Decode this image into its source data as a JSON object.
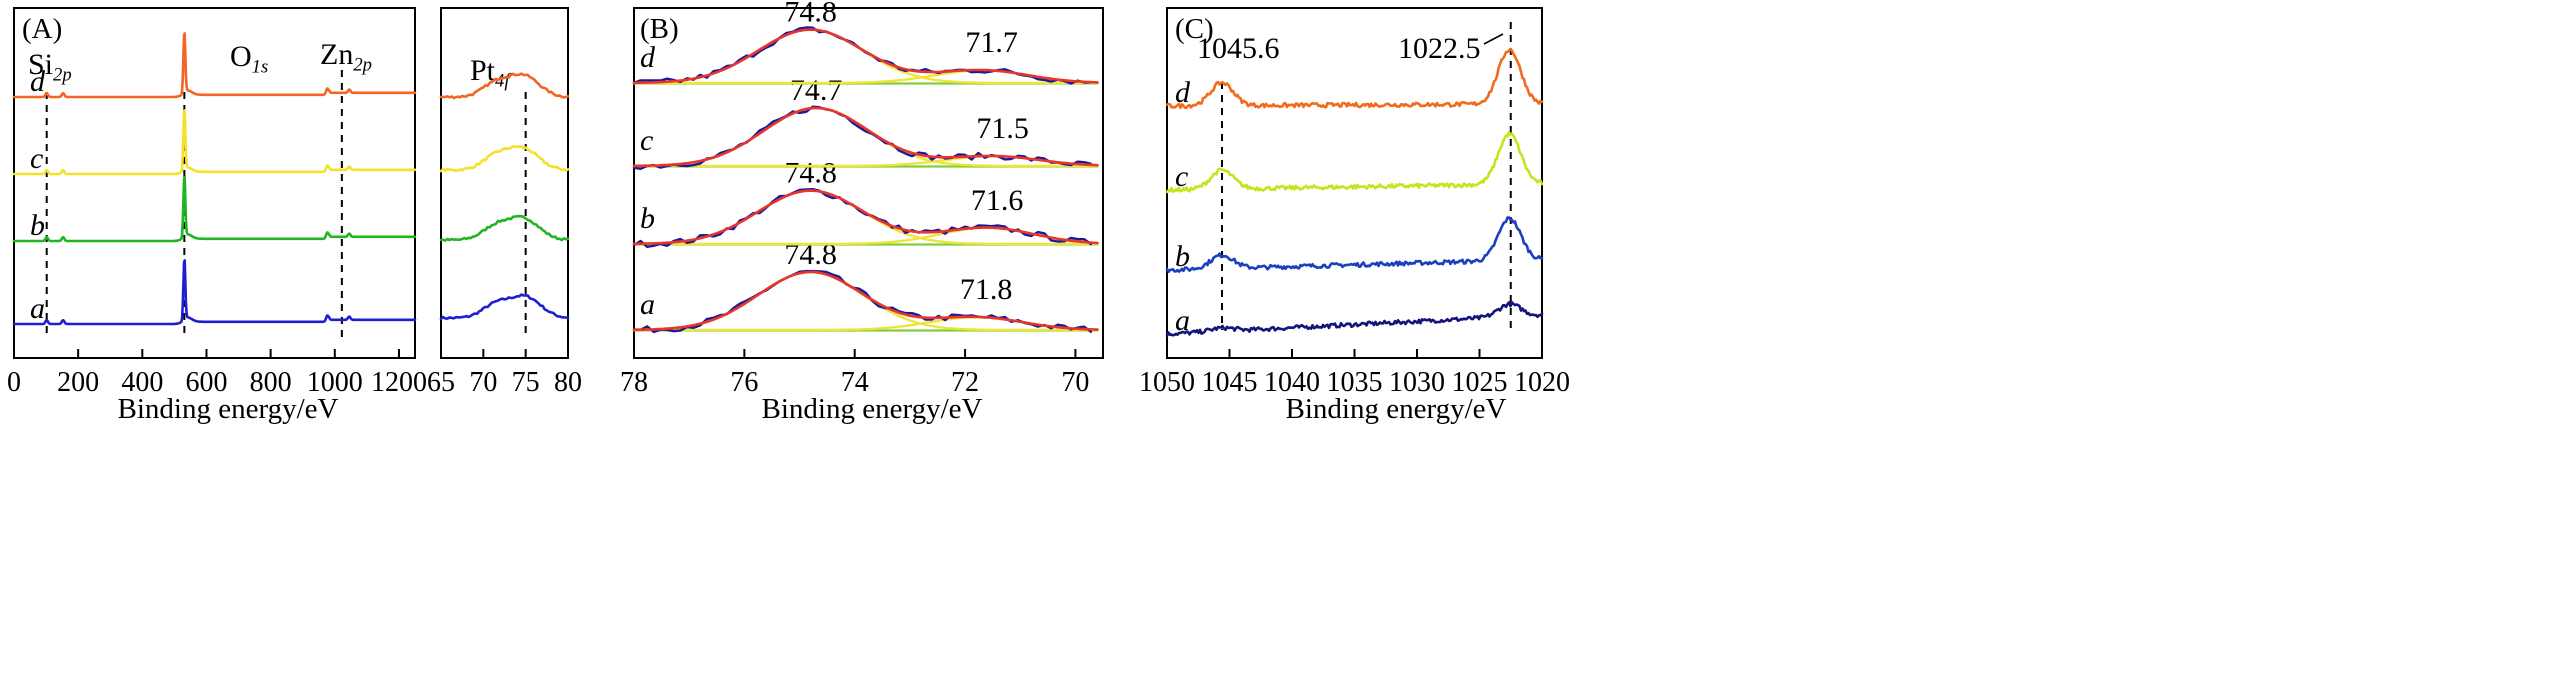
{
  "chart_data": [
    {
      "id": "A",
      "type": "line",
      "panel_label": "(A)",
      "xlabel": "Binding energy/eV",
      "xlim": [
        0,
        1250
      ],
      "xticks": [
        0,
        200,
        400,
        600,
        800,
        1000,
        1200
      ],
      "inset": {
        "title_base": "Pt",
        "title_sub": "4f",
        "xlim": [
          65,
          80
        ],
        "xticks": [
          65,
          70,
          75,
          80
        ],
        "reference_line": 75
      },
      "peak_labels": [
        {
          "base": "Si",
          "sub": "2p",
          "x": 102
        },
        {
          "base": "O",
          "sub": "1s",
          "x": 531
        },
        {
          "base": "Zn",
          "sub": "2p",
          "x": 1022
        }
      ],
      "reference_lines": [
        102,
        531,
        1022
      ],
      "series": [
        {
          "name": "a",
          "color": "#1f1fd0",
          "offset": 0.0,
          "peaks": [
            [
              102,
              0.06
            ],
            [
              153,
              0.06
            ],
            [
              531,
              0.95
            ],
            [
              977,
              0.1
            ],
            [
              1045,
              0.05
            ]
          ],
          "pt_peak": 75.0
        },
        {
          "name": "b",
          "color": "#22b422",
          "offset": 1.0,
          "peaks": [
            [
              102,
              0.06
            ],
            [
              153,
              0.06
            ],
            [
              531,
              0.95
            ],
            [
              977,
              0.1
            ],
            [
              1045,
              0.05
            ]
          ],
          "pt_peak": 74.8
        },
        {
          "name": "c",
          "color": "#f5e02a",
          "offset": 2.0,
          "peaks": [
            [
              102,
              0.06
            ],
            [
              153,
              0.06
            ],
            [
              531,
              0.95
            ],
            [
              977,
              0.1
            ],
            [
              1045,
              0.05
            ]
          ],
          "pt_peak": 74.7
        },
        {
          "name": "d",
          "color": "#f26522",
          "offset": 3.0,
          "peaks": [
            [
              102,
              0.06
            ],
            [
              153,
              0.06
            ],
            [
              531,
              0.95
            ],
            [
              977,
              0.1
            ],
            [
              1045,
              0.05
            ]
          ],
          "pt_peak": 74.8
        }
      ]
    },
    {
      "id": "B",
      "type": "line",
      "panel_label": "(B)",
      "xlabel": "Binding energy/eV",
      "xlim": [
        78,
        69.5
      ],
      "xticks": [
        78,
        76,
        74,
        72,
        70
      ],
      "series": [
        {
          "name": "a",
          "offset": 0,
          "peak1": 74.8,
          "peak2": 71.8,
          "label1": "74.8",
          "label2": "71.8",
          "amp1": 1.0,
          "amp2": 0.22
        },
        {
          "name": "b",
          "offset": 1,
          "peak1": 74.8,
          "peak2": 71.6,
          "label1": "74.8",
          "label2": "71.6",
          "amp1": 0.92,
          "amp2": 0.28
        },
        {
          "name": "c",
          "offset": 2,
          "peak1": 74.7,
          "peak2": 71.5,
          "label1": "74.7",
          "label2": "71.5",
          "amp1": 1.0,
          "amp2": 0.17
        },
        {
          "name": "d",
          "offset": 3,
          "peak1": 74.8,
          "peak2": 71.7,
          "label1": "74.8",
          "label2": "71.7",
          "amp1": 0.92,
          "amp2": 0.22
        }
      ],
      "colors": {
        "raw": "#1a1a9c",
        "envelope": "#e8362b",
        "component": "#f0e43a",
        "baseline": "#7fd13b"
      }
    },
    {
      "id": "C",
      "type": "line",
      "panel_label": "(C)",
      "xlabel": "Binding energy/eV",
      "xlim": [
        1050,
        1020
      ],
      "xticks": [
        1050,
        1045,
        1040,
        1035,
        1030,
        1025,
        1020
      ],
      "reference_lines": [
        1045.6,
        1022.5
      ],
      "annotations": [
        "1045.6",
        "1022.5"
      ],
      "series": [
        {
          "name": "a",
          "color": "#14147a",
          "offset": 0,
          "amp_main": 0.3,
          "amp_minor": 0.08,
          "slope": 0.45
        },
        {
          "name": "b",
          "color": "#1b3fbf",
          "offset": 1,
          "amp_main": 1.0,
          "amp_minor": 0.32,
          "slope": 0.25
        },
        {
          "name": "c",
          "color": "#c8e31e",
          "offset": 2,
          "amp_main": 1.2,
          "amp_minor": 0.45,
          "slope": 0.15
        },
        {
          "name": "d",
          "color": "#f26a1b",
          "offset": 3,
          "amp_main": 1.3,
          "amp_minor": 0.55,
          "slope": 0.05
        }
      ]
    }
  ]
}
